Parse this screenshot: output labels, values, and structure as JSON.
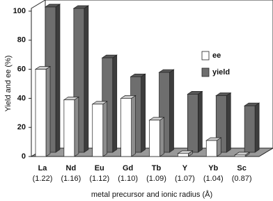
{
  "chart_data": {
    "type": "bar3d",
    "y_label": "Yield and ee (%)",
    "x_label": "metal precursor and ionic radius (Å)",
    "categories": [
      "La",
      "Nd",
      "Eu",
      "Gd",
      "Tb",
      "Y",
      "Yb",
      "Sc"
    ],
    "ionic_radius_labels": [
      "(1.22)",
      "(1.16)",
      "(1.12)",
      "(1.10)",
      "(1.09)",
      "(1.07)",
      "(1.04)",
      "(0.87)"
    ],
    "series": [
      {
        "name": "ee",
        "color": "#ffffff",
        "values": [
          60,
          39,
          36,
          40,
          25,
          2,
          11,
          1
        ]
      },
      {
        "name": "yield",
        "color": "#6e6e6e",
        "values": [
          100,
          99,
          65,
          52,
          55,
          40,
          39,
          32
        ]
      }
    ],
    "ylim": [
      0,
      100
    ],
    "yticks": [
      0,
      20,
      40,
      60,
      80,
      100
    ],
    "grid": false,
    "legend": "right"
  }
}
